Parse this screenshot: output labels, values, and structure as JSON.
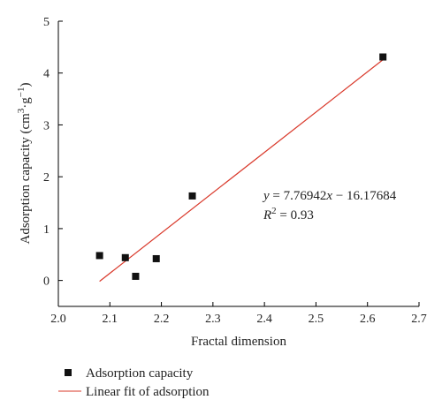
{
  "chart_data": {
    "type": "scatter",
    "xlabel": "Fractal dimension",
    "ylabel": "Adsorption capacity (cm3·g−1)",
    "ylabel_parts": {
      "prefix": "Adsorption capacity (cm",
      "sup1": "3",
      "mid": "·g",
      "sup2": "−1",
      "suffix": ")"
    },
    "xlim": [
      2.0,
      2.7
    ],
    "ylim": [
      -0.5,
      5
    ],
    "xticks": [
      "2.0",
      "2.1",
      "2.2",
      "2.3",
      "2.4",
      "2.5",
      "2.6",
      "2.7"
    ],
    "yticks": [
      "0",
      "1",
      "2",
      "3",
      "4",
      "5"
    ],
    "series": [
      {
        "name": "Adsorption capacity",
        "kind": "scatter",
        "color": "#111111",
        "points": [
          {
            "x": 2.08,
            "y": 0.48
          },
          {
            "x": 2.13,
            "y": 0.44
          },
          {
            "x": 2.15,
            "y": 0.08
          },
          {
            "x": 2.19,
            "y": 0.42
          },
          {
            "x": 2.26,
            "y": 1.63
          },
          {
            "x": 2.63,
            "y": 4.31
          }
        ]
      },
      {
        "name": "Linear fit of adsorption",
        "kind": "line",
        "color": "#d9382a",
        "slope": 7.76942,
        "intercept": -16.17684,
        "x_range": [
          2.08,
          2.63
        ]
      }
    ],
    "annotation": {
      "y_label": "y",
      "equation_rest": " = 7.76942",
      "x_var": "x",
      "equation_tail": " − 16.17684",
      "r_label": "R",
      "r_sup": "2",
      "r_rest": " = 0.93"
    },
    "legend_position": "bottom-left"
  }
}
